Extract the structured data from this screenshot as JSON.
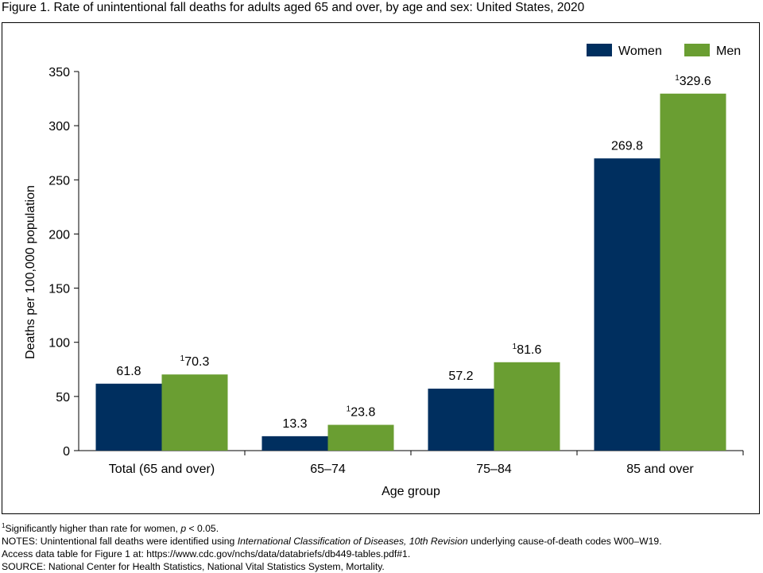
{
  "figure": {
    "title": "Figure 1. Rate of unintentional fall deaths for adults aged 65 and over, by age and sex: United States, 2020"
  },
  "chart_data": {
    "type": "bar",
    "categories": [
      "Total (65 and over)",
      "65–74",
      "75–84",
      "85 and over"
    ],
    "series": [
      {
        "name": "Women",
        "color": "#002f5f",
        "values": [
          61.8,
          13.3,
          57.2,
          269.8
        ],
        "labels": [
          "61.8",
          "13.3",
          "57.2",
          "269.8"
        ],
        "label_sup": [
          "",
          "",
          "",
          ""
        ]
      },
      {
        "name": "Men",
        "color": "#6a9e32",
        "values": [
          70.3,
          23.8,
          81.6,
          329.6
        ],
        "labels": [
          "70.3",
          "23.8",
          "81.6",
          "329.6"
        ],
        "label_sup": [
          "1",
          "1",
          "1",
          "1"
        ]
      }
    ],
    "xlabel": "Age group",
    "ylabel": "Deaths per 100,000 population",
    "ylim": [
      0,
      350
    ],
    "yticks": [
      0,
      50,
      100,
      150,
      200,
      250,
      300,
      350
    ],
    "grid": false,
    "legend_position": "top-right"
  },
  "footnotes": {
    "note1_sup": "1",
    "note1_text": "Significantly higher than rate for women, ",
    "note1_p": "p",
    "note1_end": " < 0.05.",
    "notes_prefix": "NOTES: Unintentional fall deaths were identified using ",
    "notes_italic": "International Classification of Diseases, 10th Revision",
    "notes_suffix": " underlying cause-of-death codes W00–W19.",
    "access": "Access data table for Figure 1 at: https://www.cdc.gov/nchs/data/databriefs/db449-tables.pdf#1.",
    "source": "SOURCE: National Center for Health Statistics, National Vital Statistics System, Mortality."
  }
}
